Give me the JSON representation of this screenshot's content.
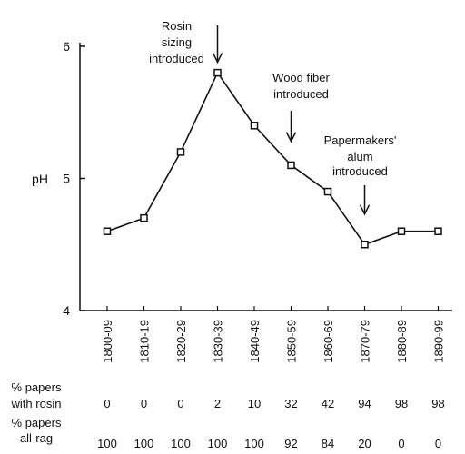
{
  "chart_data": {
    "type": "line",
    "title": "",
    "ylabel": "pH",
    "xlabel": "",
    "ylim": [
      4,
      6
    ],
    "yticks": [
      4,
      5,
      6
    ],
    "grid": false,
    "categories": [
      "1800-09",
      "1810-19",
      "1820-29",
      "1830-39",
      "1840-49",
      "1850-59",
      "1860-69",
      "1870-79",
      "1880-89",
      "1890-99"
    ],
    "series": [
      {
        "values": [
          4.6,
          4.7,
          5.2,
          5.8,
          5.4,
          5.1,
          4.9,
          4.5,
          4.6,
          4.6
        ]
      }
    ],
    "annotations": [
      {
        "lines": [
          "Rosin",
          "sizing",
          "introduced"
        ],
        "category": "1830-39",
        "arrow_tip_y": 5.88
      },
      {
        "lines": [
          "Wood fiber",
          "introduced"
        ],
        "category": "1850-59",
        "arrow_tip_y": 5.28
      },
      {
        "lines": [
          "Papermakers'",
          "alum",
          "introduced"
        ],
        "category": "1870-79",
        "arrow_tip_y": 4.73
      }
    ],
    "rows": [
      {
        "label": [
          "% papers",
          "with rosin"
        ],
        "values": [
          "0",
          "0",
          "0",
          "2",
          "10",
          "32",
          "42",
          "94",
          "98",
          "98"
        ]
      },
      {
        "label": [
          "% papers",
          "all-rag"
        ],
        "values": [
          "100",
          "100",
          "100",
          "100",
          "100",
          "92",
          "84",
          "20",
          "0",
          "0"
        ]
      }
    ],
    "colors": {
      "line": "#111111",
      "marker_fill": "#ffffff"
    }
  }
}
